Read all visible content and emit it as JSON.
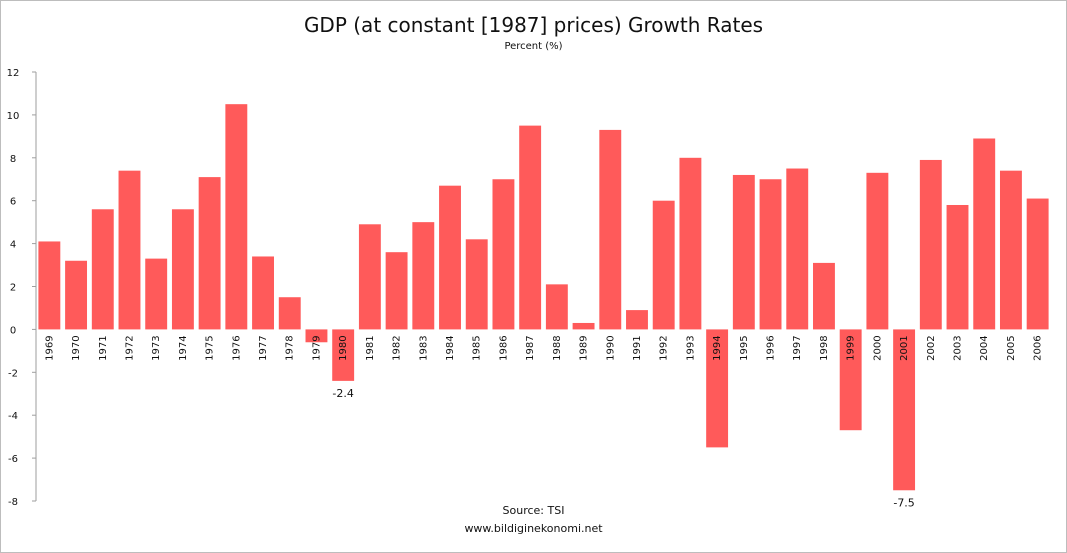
{
  "chart_data": {
    "type": "bar",
    "title": "GDP (at constant [1987] prices) Growth Rates",
    "subtitle": "Percent (%)",
    "source": "Source: TSI",
    "website": "www.bildiginekonomi.net",
    "xlabel": "",
    "ylabel": "",
    "ylim": [
      -8,
      12
    ],
    "yticks": [
      12,
      10,
      8,
      6,
      4,
      2,
      0,
      -2,
      -4,
      -6,
      -8
    ],
    "grid": false,
    "bar_color": "#ff5a5a",
    "categories": [
      "1969",
      "1970",
      "1971",
      "1972",
      "1973",
      "1974",
      "1975",
      "1976",
      "1977",
      "1978",
      "1979",
      "1980",
      "1981",
      "1982",
      "1983",
      "1984",
      "1985",
      "1986",
      "1987",
      "1988",
      "1989",
      "1990",
      "1991",
      "1992",
      "1993",
      "1994",
      "1995",
      "1996",
      "1997",
      "1998",
      "1999",
      "2000",
      "2001",
      "2002",
      "2003",
      "2004",
      "2005",
      "2006"
    ],
    "values": [
      4.1,
      3.2,
      5.6,
      7.4,
      3.3,
      5.6,
      7.1,
      10.5,
      3.4,
      1.5,
      -0.6,
      -2.4,
      4.9,
      3.6,
      5.0,
      6.7,
      4.2,
      7.0,
      9.5,
      2.1,
      0.3,
      9.3,
      0.9,
      6.0,
      8.0,
      -5.5,
      7.2,
      7.0,
      7.5,
      3.1,
      -4.7,
      7.3,
      -7.5,
      7.9,
      5.8,
      8.9,
      7.4,
      6.1
    ],
    "data_labels": [
      {
        "category": "1980",
        "text": "-2.4"
      },
      {
        "category": "2001",
        "text": "-7.5"
      }
    ]
  }
}
